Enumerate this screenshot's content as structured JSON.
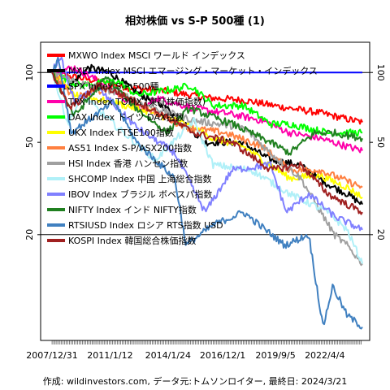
{
  "chart_data": {
    "type": "line",
    "title": "相対株価 vs S-P 500種 (1)",
    "footer": "作成: wildinvestors.com, データ元:トムソンロイター, 最終日: 2024/3/21",
    "y_scale": "log",
    "ylim": [
      7,
      135
    ],
    "y_ticks": [
      20,
      50,
      100
    ],
    "y_tick_labels": [
      "20",
      "50",
      "100"
    ],
    "reference_lines": [
      100,
      20
    ],
    "xlim": [
      "2007-12-31",
      "2024-03-21"
    ],
    "x_ticks": [
      "2007-12-31",
      "2011-01-12",
      "2014-01-24",
      "2016-12-01",
      "2019-09-05",
      "2022-04-04"
    ],
    "x_tick_labels": [
      "2007/12/31",
      "2011/1/12",
      "2014/1/24",
      "2016/12/1",
      "2019/9/5",
      "2022/4/4"
    ],
    "legend_position": "top-left",
    "grid": false,
    "series": [
      {
        "name": "MXWO Index MSCI ワールド インデックス",
        "color": "#ff0000",
        "line_width": 2,
        "points": [
          [
            "2007-12-31",
            100
          ],
          [
            "2009-01-01",
            96
          ],
          [
            "2010-06-01",
            92
          ],
          [
            "2012-01-01",
            86
          ],
          [
            "2014-01-01",
            83
          ],
          [
            "2016-01-01",
            78
          ],
          [
            "2018-01-01",
            76
          ],
          [
            "2020-01-01",
            71
          ],
          [
            "2022-01-01",
            67
          ],
          [
            "2023-06-01",
            63
          ],
          [
            "2024-03-21",
            61
          ]
        ]
      },
      {
        "name": "MXEF Index MSCI エマージング・マーケット・インデックス",
        "color": "#000000",
        "line_width": 2,
        "points": [
          [
            "2007-12-31",
            100
          ],
          [
            "2008-10-01",
            85
          ],
          [
            "2009-12-01",
            105
          ],
          [
            "2011-01-01",
            100
          ],
          [
            "2012-06-01",
            82
          ],
          [
            "2014-01-01",
            70
          ],
          [
            "2016-01-01",
            50
          ],
          [
            "2017-12-01",
            50
          ],
          [
            "2019-06-01",
            42
          ],
          [
            "2020-12-01",
            40
          ],
          [
            "2022-06-01",
            33
          ],
          [
            "2023-06-01",
            30
          ],
          [
            "2024-03-21",
            27
          ]
        ]
      },
      {
        "name": "SPX Index S-P 500種",
        "color": "#0000ff",
        "line_width": 2,
        "points": [
          [
            "2007-12-31",
            100
          ],
          [
            "2024-03-21",
            100
          ]
        ]
      },
      {
        "name": "TPX Index TOPIX (東証株価指数)",
        "color": "#ff00aa",
        "line_width": 2,
        "points": [
          [
            "2007-12-31",
            100
          ],
          [
            "2009-03-01",
            105
          ],
          [
            "2010-06-01",
            92
          ],
          [
            "2012-10-01",
            68
          ],
          [
            "2013-06-01",
            78
          ],
          [
            "2015-06-01",
            70
          ],
          [
            "2017-06-01",
            66
          ],
          [
            "2019-01-01",
            62
          ],
          [
            "2020-06-01",
            55
          ],
          [
            "2022-01-01",
            52
          ],
          [
            "2023-06-01",
            48
          ],
          [
            "2024-03-21",
            46
          ]
        ]
      },
      {
        "name": "DAX Index ドイツ DAX指数",
        "color": "#00ff00",
        "line_width": 2,
        "points": [
          [
            "2007-12-31",
            100
          ],
          [
            "2009-06-01",
            88
          ],
          [
            "2011-06-01",
            92
          ],
          [
            "2012-06-01",
            80
          ],
          [
            "2014-06-01",
            85
          ],
          [
            "2015-04-01",
            88
          ],
          [
            "2016-06-01",
            72
          ],
          [
            "2018-01-01",
            72
          ],
          [
            "2019-06-01",
            60
          ],
          [
            "2020-06-01",
            60
          ],
          [
            "2022-06-01",
            55
          ],
          [
            "2023-06-01",
            55
          ],
          [
            "2024-03-21",
            55
          ]
        ]
      },
      {
        "name": "UKX Index FTSE100指数",
        "color": "#ffff00",
        "line_width": 2,
        "points": [
          [
            "2007-12-31",
            100
          ],
          [
            "2009-03-01",
            80
          ],
          [
            "2011-01-01",
            75
          ],
          [
            "2013-01-01",
            68
          ],
          [
            "2015-01-01",
            60
          ],
          [
            "2016-06-01",
            52
          ],
          [
            "2018-01-01",
            48
          ],
          [
            "2020-06-01",
            35
          ],
          [
            "2022-01-01",
            36
          ],
          [
            "2023-06-01",
            32
          ],
          [
            "2024-03-21",
            29
          ]
        ]
      },
      {
        "name": "AS51 Index S-P/ASX200指数",
        "color": "#ff8040",
        "line_width": 2,
        "points": [
          [
            "2007-12-31",
            100
          ],
          [
            "2009-03-01",
            78
          ],
          [
            "2011-01-01",
            85
          ],
          [
            "2013-01-01",
            70
          ],
          [
            "2015-01-01",
            58
          ],
          [
            "2017-01-01",
            55
          ],
          [
            "2019-01-01",
            48
          ],
          [
            "2020-06-01",
            38
          ],
          [
            "2022-01-01",
            38
          ],
          [
            "2023-06-01",
            34
          ],
          [
            "2024-03-21",
            32
          ]
        ]
      },
      {
        "name": "HSI Index 香港 ハンセン指数",
        "color": "#a0a0a0",
        "line_width": 2,
        "points": [
          [
            "2007-12-31",
            100
          ],
          [
            "2009-06-01",
            90
          ],
          [
            "2011-06-01",
            82
          ],
          [
            "2013-06-01",
            70
          ],
          [
            "2015-06-01",
            62
          ],
          [
            "2018-01-01",
            58
          ],
          [
            "2019-06-01",
            45
          ],
          [
            "2021-01-01",
            35
          ],
          [
            "2022-10-01",
            20
          ],
          [
            "2023-06-01",
            18
          ],
          [
            "2024-03-21",
            15
          ]
        ]
      },
      {
        "name": "SHCOMP Index 中国 上海総合指数",
        "color": "#b0f0f8",
        "line_width": 2,
        "points": [
          [
            "2007-12-31",
            100
          ],
          [
            "2008-11-01",
            60
          ],
          [
            "2009-08-01",
            80
          ],
          [
            "2011-06-01",
            58
          ],
          [
            "2013-06-01",
            42
          ],
          [
            "2015-06-01",
            62
          ],
          [
            "2016-06-01",
            40
          ],
          [
            "2018-06-01",
            38
          ],
          [
            "2020-06-01",
            30
          ],
          [
            "2022-06-01",
            25
          ],
          [
            "2023-06-01",
            21
          ],
          [
            "2024-03-21",
            15
          ]
        ]
      },
      {
        "name": "IBOV Index ブラジル ボベスパ指数",
        "color": "#8080ff",
        "line_width": 2,
        "points": [
          [
            "2007-12-31",
            100
          ],
          [
            "2008-06-01",
            118
          ],
          [
            "2009-03-01",
            75
          ],
          [
            "2010-06-01",
            85
          ],
          [
            "2012-06-01",
            58
          ],
          [
            "2014-06-01",
            45
          ],
          [
            "2016-01-01",
            25
          ],
          [
            "2017-06-01",
            38
          ],
          [
            "2019-06-01",
            40
          ],
          [
            "2020-04-01",
            25
          ],
          [
            "2021-06-01",
            30
          ],
          [
            "2022-10-01",
            24
          ],
          [
            "2024-03-21",
            21
          ]
        ]
      },
      {
        "name": "NIFTY Index インド NIFTY指数",
        "color": "#208020",
        "line_width": 2,
        "points": [
          [
            "2007-12-31",
            100
          ],
          [
            "2009-03-01",
            65
          ],
          [
            "2010-11-01",
            95
          ],
          [
            "2012-06-01",
            70
          ],
          [
            "2014-01-01",
            55
          ],
          [
            "2015-03-01",
            70
          ],
          [
            "2017-06-01",
            60
          ],
          [
            "2019-06-01",
            50
          ],
          [
            "2020-06-01",
            45
          ],
          [
            "2021-10-01",
            55
          ],
          [
            "2022-10-01",
            55
          ],
          [
            "2024-03-21",
            52
          ]
        ]
      },
      {
        "name": "RTSIUSD Index ロシア RTS指数 USD",
        "color": "#4080c0",
        "line_width": 2,
        "points": [
          [
            "2007-12-31",
            100
          ],
          [
            "2008-05-01",
            115
          ],
          [
            "2009-01-01",
            55
          ],
          [
            "2011-04-01",
            75
          ],
          [
            "2012-06-01",
            50
          ],
          [
            "2014-06-01",
            35
          ],
          [
            "2015-01-01",
            18
          ],
          [
            "2016-06-01",
            22
          ],
          [
            "2018-01-01",
            25
          ],
          [
            "2020-03-01",
            18
          ],
          [
            "2021-06-01",
            20
          ],
          [
            "2022-03-01",
            8
          ],
          [
            "2022-09-01",
            12
          ],
          [
            "2023-06-01",
            9
          ],
          [
            "2024-03-21",
            8
          ]
        ]
      },
      {
        "name": "KOSPI Index 韓国総合株価指数",
        "color": "#a02020",
        "line_width": 2,
        "points": [
          [
            "2007-12-31",
            100
          ],
          [
            "2008-12-01",
            70
          ],
          [
            "2010-06-01",
            88
          ],
          [
            "2011-06-01",
            82
          ],
          [
            "2013-06-01",
            68
          ],
          [
            "2015-06-01",
            55
          ],
          [
            "2017-06-01",
            50
          ],
          [
            "2019-06-01",
            38
          ],
          [
            "2021-01-01",
            40
          ],
          [
            "2022-06-01",
            30
          ],
          [
            "2023-06-01",
            27
          ],
          [
            "2024-03-21",
            25
          ]
        ]
      }
    ]
  }
}
